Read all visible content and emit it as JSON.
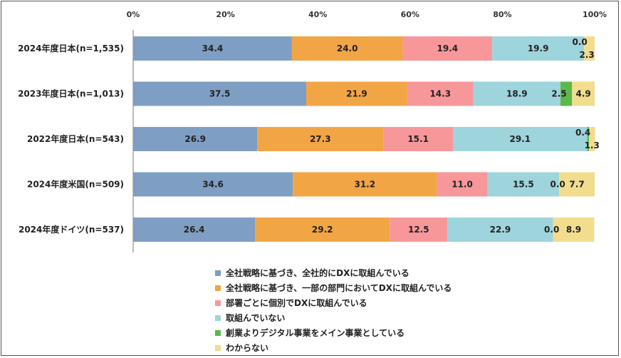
{
  "chart_data": {
    "type": "bar",
    "orientation": "horizontal",
    "stacked": true,
    "xlim": [
      0,
      100
    ],
    "x_ticks": [
      "0%",
      "20%",
      "40%",
      "60%",
      "80%",
      "100%"
    ],
    "categories": [
      "2024年度日本(n=1,535)",
      "2023年度日本(n=1,013)",
      "2022年度日本(n=543)",
      "2024年度米国(n=509)",
      "2024年度ドイツ(n=537)"
    ],
    "series": [
      {
        "name": "全社戦略に基づき、全社的にDXに取組んでいる",
        "color": "#7F9EC4",
        "values": [
          34.4,
          37.5,
          26.9,
          34.6,
          26.4
        ],
        "labels": [
          "34.4",
          "37.5",
          "26.9",
          "34.6",
          "26.4"
        ]
      },
      {
        "name": "全社戦略に基づき、一部の部門においてDXに取組んでいる",
        "color": "#F2A545",
        "values": [
          24.0,
          21.9,
          27.3,
          31.2,
          29.2
        ],
        "labels": [
          "24.0",
          "21.9",
          "27.3",
          "31.2",
          "29.2"
        ]
      },
      {
        "name": "部署ごとに個別でDXに取組んでいる",
        "color": "#F7979A",
        "values": [
          19.4,
          14.3,
          15.1,
          11.0,
          12.5
        ],
        "labels": [
          "19.4",
          "14.3",
          "15.1",
          "11.0",
          "12.5"
        ]
      },
      {
        "name": "取組んでいない",
        "color": "#9ED4DB",
        "values": [
          19.9,
          18.9,
          29.1,
          15.5,
          22.9
        ],
        "labels": [
          "19.9",
          "18.9",
          "29.1",
          "15.5",
          "22.9"
        ]
      },
      {
        "name": "創業よりデジタル事業をメイン事業としている",
        "color": "#5DB84A",
        "values": [
          0.0,
          2.5,
          0.4,
          0.0,
          0.0
        ],
        "labels": [
          "0.0",
          "2.5",
          "0.4",
          "0.0",
          "0.0"
        ]
      },
      {
        "name": "わからない",
        "color": "#F2DC8E",
        "values": [
          2.3,
          4.9,
          1.3,
          7.7,
          8.9
        ],
        "labels": [
          "2.3",
          "4.9",
          "1.3",
          "7.7",
          "8.9"
        ]
      }
    ]
  }
}
